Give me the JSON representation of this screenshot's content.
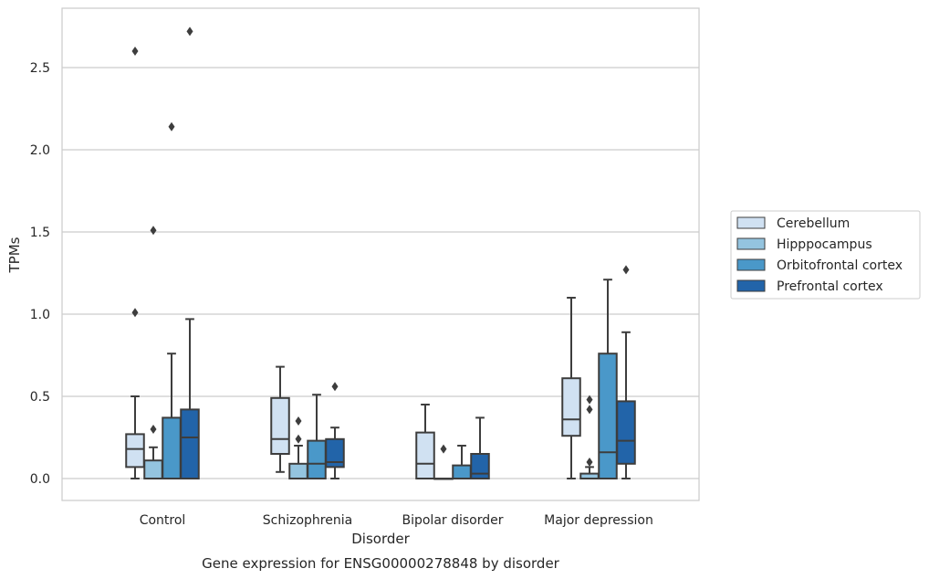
{
  "chart_data": {
    "type": "boxplot",
    "caption": "Gene expression for ENSG00000278848 by disorder",
    "xlabel": "Disorder",
    "ylabel": "TPMs",
    "ylim": [
      -0.13,
      2.87
    ],
    "yticks": [
      0.0,
      0.5,
      1.0,
      1.5,
      2.0,
      2.5
    ],
    "ytick_labels": [
      "0.0",
      "0.5",
      "1.0",
      "1.5",
      "2.0",
      "2.5"
    ],
    "grid": "horizontal",
    "legend_position": "right",
    "categories": [
      "Control",
      "Schizophrenia",
      "Bipolar disorder",
      "Major depression"
    ],
    "series": [
      {
        "name": "Cerebellum",
        "color": "#d0e1f2",
        "boxes": [
          {
            "whislo": 0.0,
            "q1": 0.07,
            "med": 0.18,
            "q3": 0.27,
            "whishi": 0.5,
            "fliers": [
              1.01,
              2.6
            ]
          },
          {
            "whislo": 0.04,
            "q1": 0.15,
            "med": 0.24,
            "q3": 0.49,
            "whishi": 0.68,
            "fliers": []
          },
          {
            "whislo": 0.0,
            "q1": 0.0,
            "med": 0.09,
            "q3": 0.28,
            "whishi": 0.45,
            "fliers": []
          },
          {
            "whislo": 0.0,
            "q1": 0.26,
            "med": 0.36,
            "q3": 0.61,
            "whishi": 1.1,
            "fliers": []
          }
        ]
      },
      {
        "name": "Hipppocampus",
        "color": "#94c4df",
        "boxes": [
          {
            "whislo": 0.0,
            "q1": 0.0,
            "med": 0.0,
            "q3": 0.11,
            "whishi": 0.19,
            "fliers": [
              0.3,
              1.51
            ]
          },
          {
            "whislo": 0.0,
            "q1": 0.0,
            "med": 0.0,
            "q3": 0.09,
            "whishi": 0.2,
            "fliers": [
              0.24,
              0.35
            ]
          },
          {
            "whislo": 0.0,
            "q1": 0.0,
            "med": 0.0,
            "q3": 0.0,
            "whishi": 0.0,
            "fliers": [
              0.18
            ]
          },
          {
            "whislo": 0.0,
            "q1": 0.0,
            "med": 0.0,
            "q3": 0.03,
            "whishi": 0.07,
            "fliers": [
              0.1,
              0.42,
              0.48
            ]
          }
        ]
      },
      {
        "name": "Orbitofrontal cortex",
        "color": "#4a98c9",
        "boxes": [
          {
            "whislo": 0.0,
            "q1": 0.0,
            "med": 0.0,
            "q3": 0.37,
            "whishi": 0.76,
            "fliers": [
              2.14
            ]
          },
          {
            "whislo": 0.0,
            "q1": 0.0,
            "med": 0.09,
            "q3": 0.23,
            "whishi": 0.51,
            "fliers": []
          },
          {
            "whislo": 0.0,
            "q1": 0.0,
            "med": 0.0,
            "q3": 0.08,
            "whishi": 0.2,
            "fliers": []
          },
          {
            "whislo": 0.0,
            "q1": 0.0,
            "med": 0.16,
            "q3": 0.76,
            "whishi": 1.21,
            "fliers": []
          }
        ]
      },
      {
        "name": "Prefrontal cortex",
        "color": "#2264a9",
        "boxes": [
          {
            "whislo": 0.0,
            "q1": 0.0,
            "med": 0.25,
            "q3": 0.42,
            "whishi": 0.97,
            "fliers": [
              2.72
            ]
          },
          {
            "whislo": 0.0,
            "q1": 0.07,
            "med": 0.1,
            "q3": 0.24,
            "whishi": 0.31,
            "fliers": [
              0.56
            ]
          },
          {
            "whislo": 0.0,
            "q1": 0.0,
            "med": 0.03,
            "q3": 0.15,
            "whishi": 0.37,
            "fliers": []
          },
          {
            "whislo": 0.0,
            "q1": 0.09,
            "med": 0.23,
            "q3": 0.47,
            "whishi": 0.89,
            "fliers": [
              1.27
            ]
          }
        ]
      }
    ]
  }
}
